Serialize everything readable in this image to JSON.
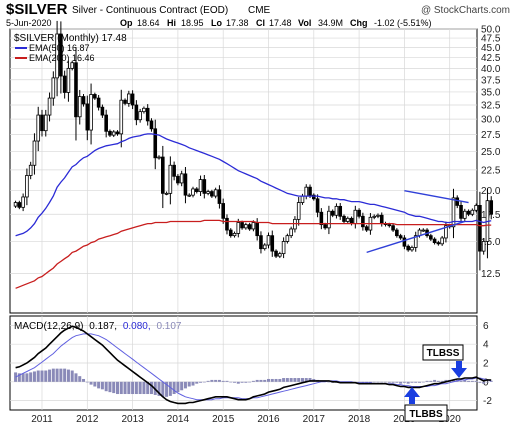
{
  "header": {
    "symbol": "$SILVER",
    "description": "Silver - Continuous Contract (EOD)",
    "exchange": "CME",
    "date": "5-Jun-2020",
    "credit": "@ StockCharts.com",
    "ohlc": {
      "open_label": "Op",
      "open": "18.64",
      "high_label": "Hi",
      "high": "18.95",
      "low_label": "Lo",
      "low": "17.38",
      "close_label": "Cl",
      "close": "17.48",
      "volume_label": "Vol",
      "volume": "34.9M",
      "change_label": "Chg",
      "change": "-1.02 (-5.51%)"
    }
  },
  "price_panel": {
    "legend_title": "$SILVER (Monthly) 17.48",
    "legend_ema50": "EMA(50) 16.87",
    "legend_ema200": "EMA(200) 16.46"
  },
  "macd_panel": {
    "legend_prefix": "MACD(12,26,9)",
    "legend_macd": "0.187,",
    "legend_signal": "0.080,",
    "legend_hist": "0.107"
  },
  "annotations": {
    "tlbss": "TLBSS",
    "tlbbs": "TLBBS"
  },
  "colors": {
    "background": "#ffffff",
    "grid": "#d8d8d8",
    "candle": "#000000",
    "ema50": "#2b2bd6",
    "ema200": "#c81e1e",
    "trendline": "#3040d8",
    "histogram": "#8a8ab8",
    "signal": "#6060e0",
    "arrow": "#1a3ee0"
  },
  "chart_data": [
    {
      "type": "candlestick",
      "title": "$SILVER (Monthly) 17.48",
      "x_tick_labels": [
        "2011",
        "2012",
        "2013",
        "2014",
        "2015",
        "2016",
        "2017",
        "2018",
        "2019",
        "2020"
      ],
      "y_tick_labels": [
        "12.5",
        "15.0",
        "17.5",
        "20.0",
        "22.5",
        "25.0",
        "27.5",
        "30.0",
        "32.5",
        "35.0",
        "37.5",
        "40.0",
        "42.5",
        "45.0",
        "47.5",
        "50.0"
      ],
      "ylim": [
        10,
        50
      ],
      "y_scale": "log",
      "grid": true,
      "start": "2010-06",
      "interval": "monthly",
      "close": [
        18.7,
        18.2,
        19.3,
        21.8,
        23.1,
        26.5,
        30.7,
        28.1,
        30.7,
        33.8,
        37.9,
        48.6,
        38.3,
        34.9,
        40.0,
        41.3,
        30.4,
        34.1,
        32.7,
        28.2,
        34.5,
        33.8,
        32.1,
        30.7,
        28.0,
        27.4,
        27.9,
        27.6,
        33.4,
        32.8,
        34.6,
        32.5,
        29.9,
        31.3,
        31.9,
        29.7,
        28.4,
        24.1,
        24.2,
        19.7,
        19.7,
        23.1,
        21.7,
        20.9,
        22.0,
        19.5,
        19.5,
        20.2,
        19.9,
        21.3,
        19.7,
        19.9,
        19.4,
        20.1,
        18.6,
        17.1,
        16.0,
        15.5,
        15.7,
        16.7,
        16.2,
        16.5,
        16.1,
        16.7,
        15.5,
        14.4,
        14.7,
        15.5,
        14.2,
        13.8,
        14.0,
        15.0,
        15.5,
        16.1,
        17.0,
        18.7,
        19.4,
        20.4,
        19.5,
        19.1,
        17.7,
        16.5,
        16.2,
        17.8,
        17.4,
        18.3,
        17.3,
        16.8,
        17.1,
        16.6,
        17.9,
        17.3,
        16.3,
        16.0,
        17.2,
        17.3,
        17.4,
        16.6,
        16.5,
        16.4,
        16.0,
        15.5,
        15.3,
        14.6,
        14.3,
        14.5,
        15.5,
        16.0,
        16.0,
        15.5,
        15.2,
        14.9,
        14.8,
        15.3,
        16.4,
        16.3,
        19.2,
        18.4,
        17.1,
        17.8,
        17.5,
        17.9,
        18.4,
        14.2,
        15.0,
        18.9,
        17.5
      ],
      "series": [
        {
          "name": "EMA(50)",
          "last": 16.87,
          "values": [
            15.5,
            15.6,
            15.7,
            15.9,
            16.2,
            16.6,
            17.2,
            17.6,
            18.1,
            18.7,
            19.4,
            20.4,
            21.0,
            21.5,
            22.2,
            22.9,
            23.2,
            23.7,
            24.1,
            24.3,
            24.7,
            25.1,
            25.4,
            25.6,
            25.8,
            25.9,
            26.0,
            26.1,
            26.4,
            26.6,
            26.9,
            27.1,
            27.2,
            27.3,
            27.5,
            27.6,
            27.6,
            27.5,
            27.4,
            27.1,
            26.8,
            26.6,
            26.4,
            26.2,
            26.0,
            25.8,
            25.5,
            25.3,
            25.1,
            24.9,
            24.7,
            24.5,
            24.3,
            24.1,
            23.9,
            23.6,
            23.3,
            23.0,
            22.7,
            22.4,
            22.2,
            22.0,
            21.8,
            21.6,
            21.4,
            21.1,
            20.9,
            20.7,
            20.5,
            20.3,
            20.1,
            19.9,
            19.7,
            19.6,
            19.5,
            19.4,
            19.4,
            19.4,
            19.4,
            19.4,
            19.4,
            19.3,
            19.2,
            19.2,
            19.1,
            19.1,
            19.0,
            19.0,
            18.9,
            18.8,
            18.8,
            18.8,
            18.7,
            18.6,
            18.5,
            18.5,
            18.4,
            18.3,
            18.2,
            18.1,
            18.0,
            17.9,
            17.8,
            17.7,
            17.5,
            17.4,
            17.3,
            17.3,
            17.2,
            17.1,
            17.0,
            16.9,
            16.8,
            16.8,
            16.7,
            16.7,
            16.8,
            16.8,
            16.8,
            16.8,
            16.8,
            16.8,
            16.9,
            16.8,
            16.7,
            16.8,
            16.87
          ]
        },
        {
          "name": "EMA(200)",
          "last": 16.46,
          "values": [
            11.5,
            11.6,
            11.7,
            11.8,
            11.9,
            12.0,
            12.2,
            12.3,
            12.5,
            12.7,
            12.9,
            13.2,
            13.4,
            13.6,
            13.8,
            14.1,
            14.2,
            14.4,
            14.6,
            14.7,
            14.9,
            15.0,
            15.2,
            15.3,
            15.4,
            15.5,
            15.6,
            15.7,
            15.9,
            16.0,
            16.1,
            16.2,
            16.3,
            16.4,
            16.5,
            16.6,
            16.6,
            16.7,
            16.7,
            16.7,
            16.7,
            16.8,
            16.8,
            16.8,
            16.8,
            16.8,
            16.8,
            16.8,
            16.8,
            16.8,
            16.9,
            16.9,
            16.9,
            16.9,
            16.9,
            16.8,
            16.8,
            16.8,
            16.8,
            16.8,
            16.8,
            16.8,
            16.8,
            16.8,
            16.7,
            16.7,
            16.7,
            16.7,
            16.6,
            16.6,
            16.6,
            16.6,
            16.6,
            16.6,
            16.6,
            16.6,
            16.6,
            16.6,
            16.6,
            16.6,
            16.6,
            16.6,
            16.6,
            16.6,
            16.6,
            16.6,
            16.6,
            16.6,
            16.6,
            16.6,
            16.6,
            16.6,
            16.6,
            16.6,
            16.6,
            16.6,
            16.6,
            16.6,
            16.6,
            16.6,
            16.6,
            16.5,
            16.5,
            16.5,
            16.5,
            16.5,
            16.5,
            16.5,
            16.5,
            16.5,
            16.5,
            16.5,
            16.5,
            16.5,
            16.5,
            16.5,
            16.5,
            16.5,
            16.5,
            16.5,
            16.5,
            16.5,
            16.5,
            16.4,
            16.4,
            16.46,
            16.46
          ]
        }
      ],
      "trendlines": [
        {
          "from": [
            "2019-01",
            20.0
          ],
          "to": [
            "2020-06",
            18.7
          ]
        },
        {
          "from": [
            "2018-03",
            14.1
          ],
          "to": [
            "2020-05",
            16.8
          ]
        }
      ]
    },
    {
      "type": "macd",
      "title": "MACD(12,26,9)",
      "macd_last": 0.187,
      "signal_last": 0.08,
      "hist_last": 0.107,
      "x_tick_labels": [
        "2011",
        "2012",
        "2013",
        "2014",
        "2015",
        "2016",
        "2017",
        "2018",
        "2019",
        "2020"
      ],
      "y_tick_labels": [
        "-2",
        "0",
        "2",
        "4",
        "6"
      ],
      "ylim": [
        -3,
        7
      ],
      "grid": true,
      "start": "2010-06",
      "interval": "monthly",
      "series": [
        {
          "name": "MACD",
          "values": [
            1.5,
            1.6,
            1.8,
            2.0,
            2.3,
            2.6,
            3.0,
            3.3,
            3.6,
            4.0,
            4.4,
            4.8,
            5.2,
            5.5,
            5.7,
            5.9,
            5.8,
            5.6,
            5.4,
            5.1,
            4.8,
            4.5,
            4.2,
            3.9,
            3.5,
            3.1,
            2.7,
            2.3,
            2.0,
            1.7,
            1.4,
            1.1,
            0.8,
            0.5,
            0.2,
            -0.1,
            -0.4,
            -0.8,
            -1.2,
            -1.6,
            -1.9,
            -2.1,
            -2.2,
            -2.3,
            -2.3,
            -2.3,
            -2.2,
            -2.2,
            -2.1,
            -2.0,
            -1.9,
            -1.8,
            -1.7,
            -1.6,
            -1.6,
            -1.6,
            -1.6,
            -1.7,
            -1.8,
            -1.9,
            -1.9,
            -1.9,
            -1.8,
            -1.6,
            -1.5,
            -1.4,
            -1.3,
            -1.1,
            -1.0,
            -0.9,
            -0.8,
            -0.6,
            -0.5,
            -0.4,
            -0.3,
            -0.2,
            -0.1,
            0.0,
            0.1,
            0.1,
            0.1,
            0.1,
            0.1,
            0.1,
            0.0,
            0.0,
            -0.1,
            -0.1,
            -0.1,
            -0.1,
            -0.1,
            -0.2,
            -0.2,
            -0.2,
            -0.2,
            -0.2,
            -0.2,
            -0.2,
            -0.2,
            -0.3,
            -0.3,
            -0.4,
            -0.5,
            -0.5,
            -0.6,
            -0.6,
            -0.6,
            -0.6,
            -0.5,
            -0.4,
            -0.3,
            -0.2,
            -0.2,
            -0.1,
            0.0,
            0.1,
            0.2,
            0.3,
            0.3,
            0.4,
            0.4,
            0.4,
            0.5,
            0.3,
            0.1,
            0.2,
            0.187
          ]
        },
        {
          "name": "Signal",
          "values": [
            0.5,
            0.7,
            0.9,
            1.1,
            1.3,
            1.5,
            1.8,
            2.1,
            2.4,
            2.7,
            3.0,
            3.4,
            3.8,
            4.1,
            4.4,
            4.7,
            4.9,
            5.0,
            5.1,
            5.1,
            5.1,
            5.0,
            4.9,
            4.7,
            4.5,
            4.2,
            3.9,
            3.6,
            3.3,
            3.0,
            2.7,
            2.4,
            2.1,
            1.8,
            1.5,
            1.2,
            0.9,
            0.6,
            0.3,
            0.0,
            -0.3,
            -0.6,
            -0.9,
            -1.2,
            -1.4,
            -1.6,
            -1.7,
            -1.8,
            -1.9,
            -1.9,
            -1.9,
            -1.9,
            -1.9,
            -1.8,
            -1.8,
            -1.7,
            -1.7,
            -1.7,
            -1.7,
            -1.7,
            -1.8,
            -1.8,
            -1.8,
            -1.7,
            -1.7,
            -1.6,
            -1.5,
            -1.4,
            -1.3,
            -1.2,
            -1.1,
            -1.0,
            -0.9,
            -0.8,
            -0.7,
            -0.6,
            -0.5,
            -0.4,
            -0.3,
            -0.2,
            -0.1,
            0.0,
            0.0,
            0.1,
            0.1,
            0.1,
            0.0,
            0.0,
            0.0,
            0.0,
            -0.1,
            -0.1,
            -0.1,
            -0.1,
            -0.1,
            -0.2,
            -0.2,
            -0.2,
            -0.2,
            -0.2,
            -0.2,
            -0.3,
            -0.3,
            -0.4,
            -0.4,
            -0.5,
            -0.5,
            -0.5,
            -0.5,
            -0.5,
            -0.4,
            -0.4,
            -0.3,
            -0.2,
            -0.2,
            -0.1,
            0.0,
            0.1,
            0.2,
            0.2,
            0.3,
            0.3,
            0.4,
            0.4,
            0.3,
            0.2,
            0.08
          ]
        }
      ]
    }
  ]
}
